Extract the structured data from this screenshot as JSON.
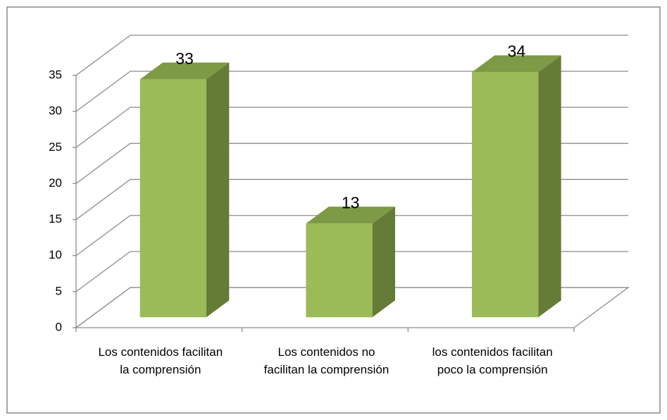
{
  "chart_data": {
    "type": "bar3d",
    "categories": [
      "Los contenidos facilitan la comprensión",
      "Los contenidos no facilitan la comprensión",
      "los contenidos facilitan poco la comprensión"
    ],
    "values": [
      33,
      13,
      34
    ],
    "color": "#9bbb59",
    "ylim": [
      0,
      35
    ],
    "yticks": [
      0,
      5,
      10,
      15,
      20,
      25,
      30,
      35
    ],
    "grid": true
  }
}
